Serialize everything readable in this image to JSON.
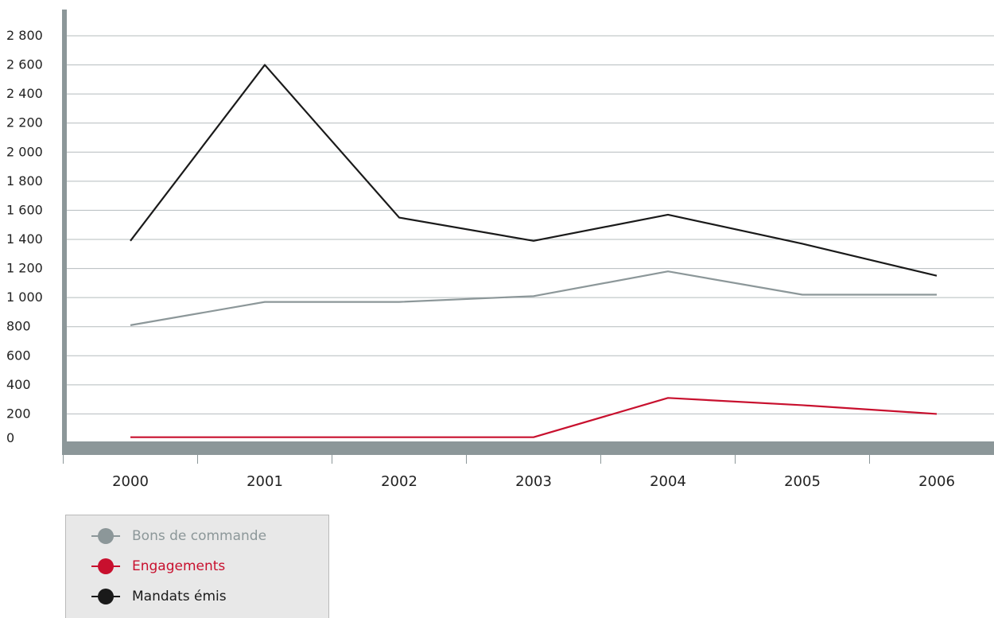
{
  "chart_data": {
    "type": "line",
    "title": "",
    "xlabel": "",
    "ylabel": "",
    "categories": [
      "2000",
      "2001",
      "2002",
      "2003",
      "2004",
      "2005",
      "2006"
    ],
    "ylim": [
      0,
      2800
    ],
    "y_ticks": [
      0,
      200,
      400,
      600,
      800,
      1000,
      1200,
      1400,
      1600,
      1800,
      2000,
      2200,
      2400,
      2600,
      2800
    ],
    "y_tick_labels": [
      "0",
      "200",
      "400",
      "600",
      "800",
      "1 000",
      "1 200",
      "1 400",
      "1 600",
      "1 800",
      "2 000",
      "2 200",
      "2 400",
      "2 600",
      "2 800"
    ],
    "grid": true,
    "legend_position": "bottom-left",
    "series": [
      {
        "name": "Bons de commande",
        "color": "#8c9799",
        "values": [
          810,
          970,
          970,
          1010,
          1180,
          1020,
          1020
        ]
      },
      {
        "name": "Engagements",
        "color": "#c8102e",
        "values": [
          40,
          40,
          40,
          40,
          310,
          260,
          200
        ]
      },
      {
        "name": "Mandats émis",
        "color": "#1a1a1a",
        "values": [
          1390,
          2600,
          1550,
          1390,
          1570,
          1370,
          1150
        ]
      }
    ]
  }
}
